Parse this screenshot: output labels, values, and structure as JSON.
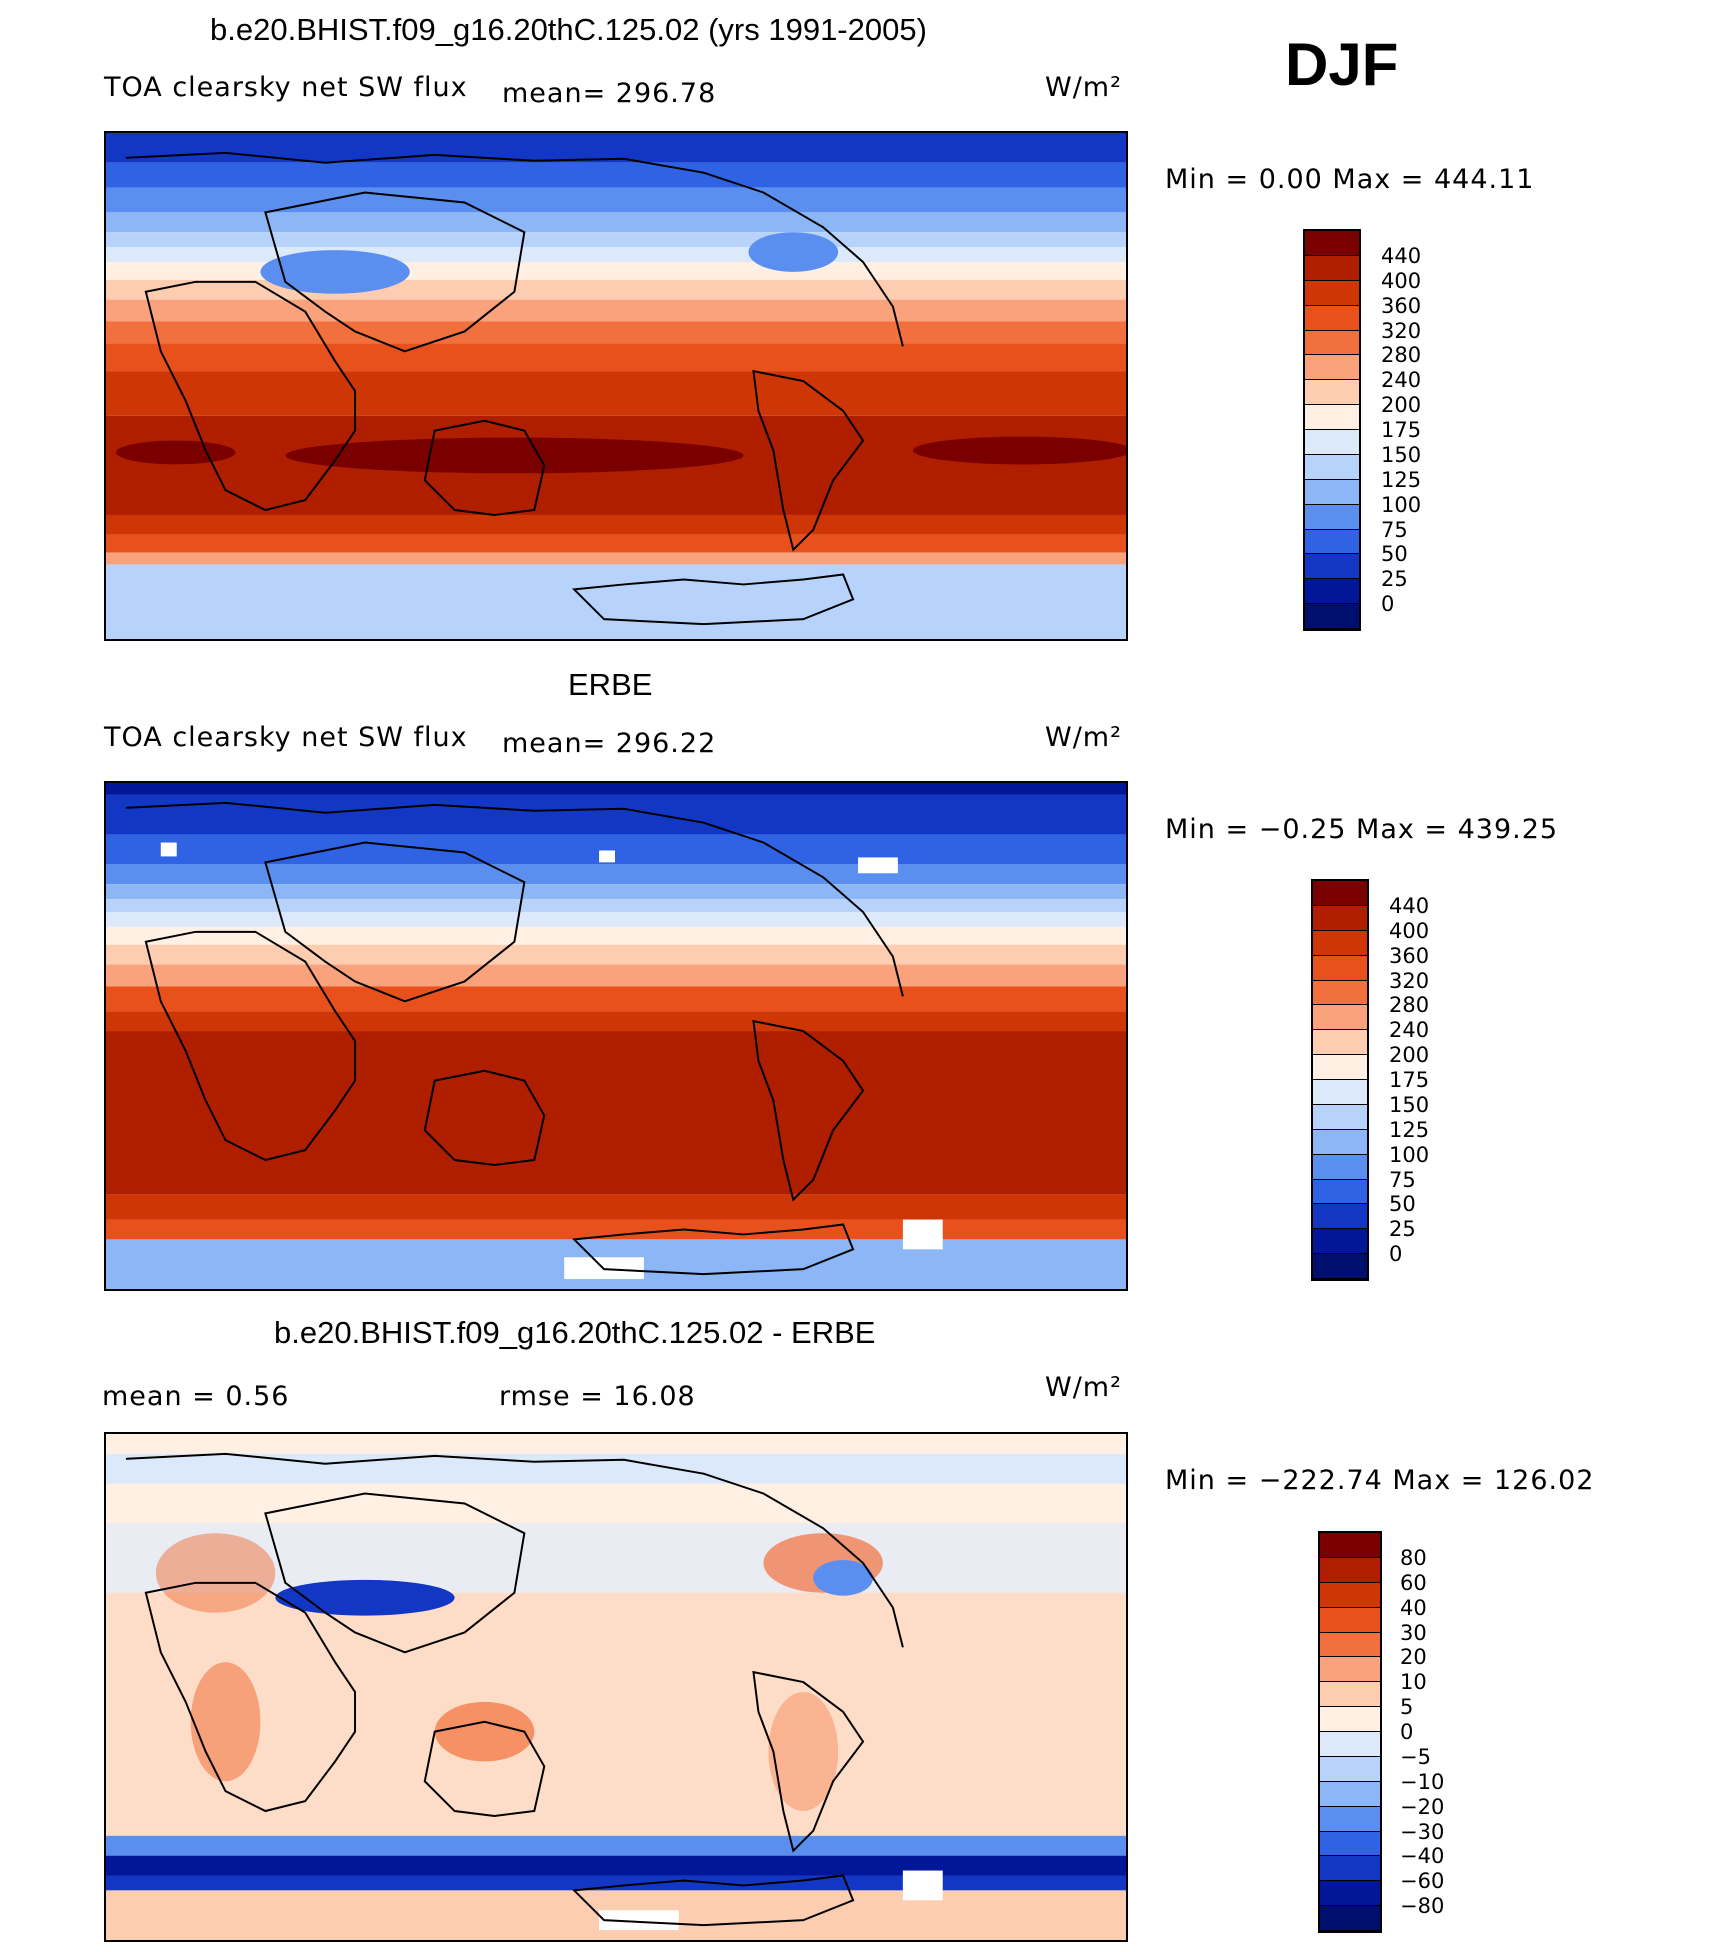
{
  "season": "DJF",
  "units": "W/m²",
  "panels": [
    {
      "title": "b.e20.BHIST.f09_g16.20thC.125.02 (yrs 1991-2005)",
      "left_label": "TOA clearsky net SW flux",
      "center_label": "mean=  296.78",
      "minmax": "Min  =     0.00  Max  =  444.11",
      "colorbar_labels": [
        "440",
        "400",
        "360",
        "320",
        "280",
        "240",
        "200",
        "175",
        "150",
        "125",
        "100",
        "75",
        "50",
        "25",
        "0"
      ],
      "colorbar_colors": [
        "#7a0000",
        "#b01e00",
        "#cf3605",
        "#e8511b",
        "#f2703d",
        "#f9a27b",
        "#fccdb1",
        "#fff0e3",
        "#dbe9fb",
        "#b8d3fb",
        "#8db6f7",
        "#5a8ff0",
        "#2f63e3",
        "#1237c4",
        "#02169a",
        "#000f6e"
      ]
    },
    {
      "title": "ERBE",
      "left_label": "TOA clearsky net SW flux",
      "center_label": "mean=  296.22",
      "minmax": "Min  =   −0.25  Max  =  439.25",
      "colorbar_labels": [
        "440",
        "400",
        "360",
        "320",
        "280",
        "240",
        "200",
        "175",
        "150",
        "125",
        "100",
        "75",
        "50",
        "25",
        "0"
      ],
      "colorbar_colors": [
        "#7a0000",
        "#b01e00",
        "#cf3605",
        "#e8511b",
        "#f2703d",
        "#f9a27b",
        "#fccdb1",
        "#fff0e3",
        "#dbe9fb",
        "#b8d3fb",
        "#8db6f7",
        "#5a8ff0",
        "#2f63e3",
        "#1237c4",
        "#02169a",
        "#000f6e"
      ]
    },
    {
      "title": "b.e20.BHIST.f09_g16.20thC.125.02 - ERBE",
      "left_label": "mean  =      0.56",
      "center_label": "rmse  =     16.08",
      "minmax": "Min  =  −222.74  Max  =  126.02",
      "colorbar_labels": [
        "80",
        "60",
        "40",
        "30",
        "20",
        "10",
        "5",
        "0",
        "−5",
        "−10",
        "−20",
        "−30",
        "−40",
        "−60",
        "−80"
      ],
      "colorbar_colors": [
        "#7a0000",
        "#b01e00",
        "#cf3605",
        "#e8511b",
        "#f2703d",
        "#f9a27b",
        "#fccdb1",
        "#fff0e3",
        "#dbe9fb",
        "#b8d3fb",
        "#8db6f7",
        "#5a8ff0",
        "#2f63e3",
        "#1237c4",
        "#02169a",
        "#000f6e"
      ]
    }
  ]
}
